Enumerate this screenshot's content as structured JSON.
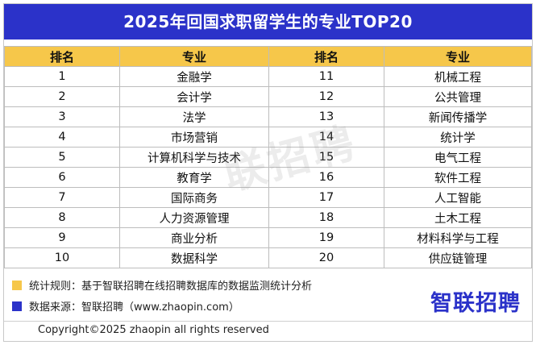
{
  "title": "2025年回国求职留学生的专业TOP20",
  "headers": [
    "排名",
    "专业",
    "排名",
    "专业"
  ],
  "rows": [
    {
      "rank_left": "1",
      "major_left": "金融学",
      "rank_right": "11",
      "major_right": "机械工程"
    },
    {
      "rank_left": "2",
      "major_left": "会计学",
      "rank_right": "12",
      "major_right": "公共管理"
    },
    {
      "rank_left": "3",
      "major_left": "法学",
      "rank_right": "13",
      "major_right": "新闻传播学"
    },
    {
      "rank_left": "4",
      "major_left": "市场营销",
      "rank_right": "14",
      "major_right": "统计学"
    },
    {
      "rank_left": "5",
      "major_left": "计算机科学与技术",
      "rank_right": "15",
      "major_right": "电气工程"
    },
    {
      "rank_left": "6",
      "major_left": "教育学",
      "rank_right": "16",
      "major_right": "软件工程"
    },
    {
      "rank_left": "7",
      "major_left": "国际商务",
      "rank_right": "17",
      "major_right": "人工智能"
    },
    {
      "rank_left": "8",
      "major_left": "人力资源管理",
      "rank_right": "18",
      "major_right": "土木工程"
    },
    {
      "rank_left": "9",
      "major_left": "商业分析",
      "rank_right": "19",
      "major_right": "材料科学与工程"
    },
    {
      "rank_left": "10",
      "major_left": "数据科学",
      "rank_right": "20",
      "major_right": "供应链管理"
    }
  ],
  "watermark": "联招聘",
  "notes": {
    "rule": "统计规则：基于智联招聘在线招聘数据库的数据监测统计分析",
    "source": "数据来源：智联招聘（www.zhaopin.com）",
    "rule_color": "#f6c74a",
    "source_color": "#2b32c9"
  },
  "brand": "智联招聘",
  "copyright": "Copyright©2025 zhaopin all rights reserved",
  "colors": {
    "title_bg": "#2b32c9",
    "header_bg": "#f6c74a",
    "brand": "#2b32c9"
  }
}
